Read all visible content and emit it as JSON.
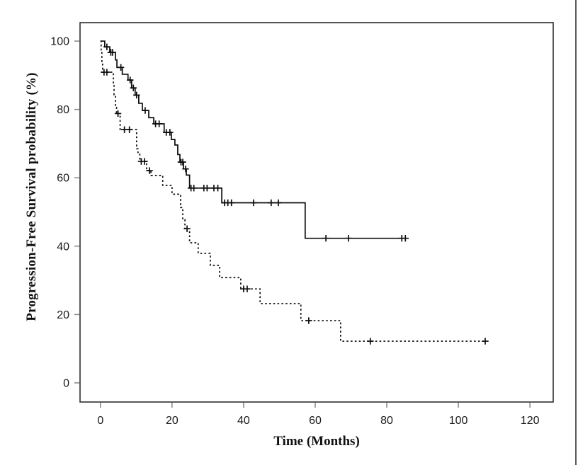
{
  "figure": {
    "kind": "kaplan-meier-survival-plot",
    "background": "#ffffff"
  },
  "chart_data": {
    "type": "line",
    "subtype": "kaplan-meier-step",
    "title": "",
    "xlabel": "Time (Months)",
    "ylabel": "Progression-Free Survival probability (%)",
    "xlim": [
      -5.7,
      126.5
    ],
    "ylim": [
      -5.6,
      105.4
    ],
    "x_ticks": [
      0,
      20,
      40,
      60,
      80,
      100,
      120
    ],
    "y_ticks": [
      0,
      20,
      40,
      60,
      80,
      100
    ],
    "grid": false,
    "legend": "none",
    "colors": {
      "curve": "#0d0d0d",
      "frame": "#2e2e2e",
      "tick": "#8d8d8d",
      "label": "#1a1a1a"
    },
    "series": [
      {
        "name": "solid",
        "line_style": "solid",
        "start": [
          0,
          100
        ],
        "steps": [
          [
            1.2,
            98.3
          ],
          [
            2.6,
            96.7
          ],
          [
            4.2,
            94.5
          ],
          [
            4.6,
            92.3
          ],
          [
            6.1,
            90.3
          ],
          [
            7.7,
            88.6
          ],
          [
            8.7,
            86.3
          ],
          [
            9.7,
            84.2
          ],
          [
            10.7,
            81.8
          ],
          [
            11.7,
            79.7
          ],
          [
            13.5,
            77.6
          ],
          [
            14.9,
            75.8
          ],
          [
            17.8,
            73.3
          ],
          [
            19.8,
            71.2
          ],
          [
            20.8,
            69.6
          ],
          [
            21.6,
            66.8
          ],
          [
            22.2,
            64.6
          ],
          [
            23.2,
            62.6
          ],
          [
            24.0,
            60.8
          ],
          [
            24.9,
            57.0
          ],
          [
            33.9,
            52.7
          ],
          [
            57.2,
            42.3
          ]
        ],
        "end_time": 85.5,
        "censors": [
          [
            1.8,
            98.3
          ],
          [
            2.9,
            96.7
          ],
          [
            3.4,
            96.7
          ],
          [
            5.7,
            92.3
          ],
          [
            8.3,
            88.6
          ],
          [
            9.2,
            86.3
          ],
          [
            10.1,
            84.2
          ],
          [
            12.5,
            79.7
          ],
          [
            15.4,
            75.8
          ],
          [
            16.4,
            75.8
          ],
          [
            18.4,
            73.3
          ],
          [
            19.4,
            73.3
          ],
          [
            22.5,
            64.6
          ],
          [
            23.0,
            64.6
          ],
          [
            23.8,
            62.6
          ],
          [
            25.3,
            57.0
          ],
          [
            26.1,
            57.0
          ],
          [
            28.9,
            57.0
          ],
          [
            29.8,
            57.0
          ],
          [
            31.7,
            57.0
          ],
          [
            32.8,
            57.0
          ],
          [
            34.7,
            52.7
          ],
          [
            35.6,
            52.7
          ],
          [
            36.6,
            52.7
          ],
          [
            42.8,
            52.7
          ],
          [
            47.7,
            52.7
          ],
          [
            49.7,
            52.7
          ],
          [
            63.0,
            42.3
          ],
          [
            69.3,
            42.3
          ],
          [
            84.2,
            42.3
          ],
          [
            85.2,
            42.3
          ]
        ]
      },
      {
        "name": "dashed",
        "line_style": "dashed",
        "start": [
          0,
          100
        ],
        "steps": [
          [
            0.2,
            97.0
          ],
          [
            0.4,
            93.8
          ],
          [
            0.6,
            90.9
          ],
          [
            3.6,
            87.5
          ],
          [
            3.8,
            84.3
          ],
          [
            4.2,
            80.6
          ],
          [
            4.5,
            78.8
          ],
          [
            5.5,
            74.1
          ],
          [
            10.1,
            68.5
          ],
          [
            10.5,
            66.9
          ],
          [
            11.0,
            64.8
          ],
          [
            12.9,
            62.1
          ],
          [
            14.1,
            60.7
          ],
          [
            17.4,
            57.8
          ],
          [
            20.0,
            55.2
          ],
          [
            22.4,
            51.3
          ],
          [
            23.0,
            47.8
          ],
          [
            23.6,
            45.1
          ],
          [
            24.9,
            41.0
          ],
          [
            27.3,
            37.9
          ],
          [
            30.7,
            34.4
          ],
          [
            33.3,
            30.8
          ],
          [
            39.2,
            27.5
          ],
          [
            44.6,
            23.2
          ],
          [
            56.0,
            18.2
          ],
          [
            67.1,
            12.2
          ]
        ],
        "end_time": 107.8,
        "censors": [
          [
            1.0,
            90.9
          ],
          [
            1.8,
            90.9
          ],
          [
            4.9,
            78.8
          ],
          [
            6.7,
            74.1
          ],
          [
            8.1,
            74.1
          ],
          [
            11.4,
            64.8
          ],
          [
            12.3,
            64.8
          ],
          [
            13.7,
            62.1
          ],
          [
            24.2,
            45.1
          ],
          [
            40.0,
            27.5
          ],
          [
            41.0,
            27.5
          ],
          [
            58.2,
            18.2
          ],
          [
            75.4,
            12.2
          ],
          [
            107.5,
            12.2
          ]
        ]
      }
    ]
  }
}
